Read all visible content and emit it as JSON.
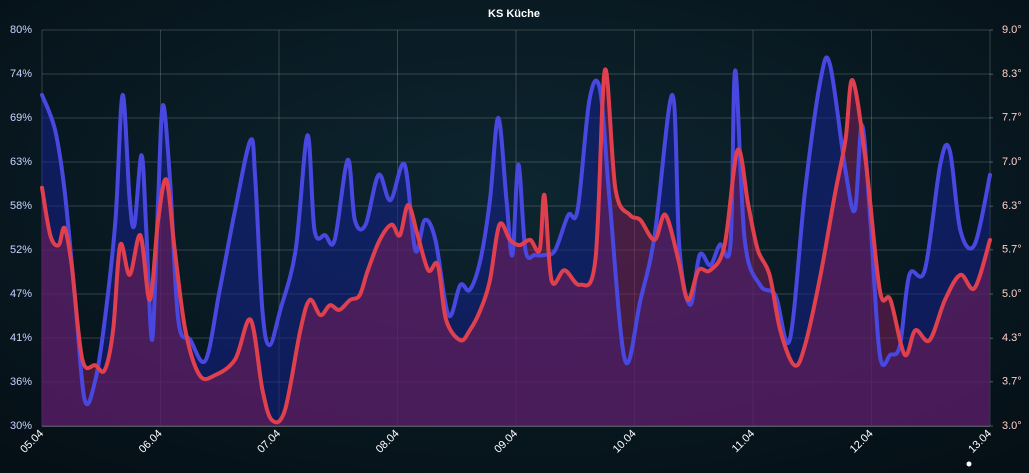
{
  "chart_data": {
    "type": "line",
    "title": "KS Küche",
    "grid": true,
    "xlim": [
      0,
      8
    ],
    "xticks": [
      {
        "value": 0,
        "label": "05.04"
      },
      {
        "value": 1,
        "label": "06.04"
      },
      {
        "value": 2,
        "label": "07.04"
      },
      {
        "value": 3,
        "label": "08.04"
      },
      {
        "value": 4,
        "label": "09.04"
      },
      {
        "value": 5,
        "label": "10.04"
      },
      {
        "value": 6,
        "label": "11.04"
      },
      {
        "value": 7,
        "label": "12.04"
      },
      {
        "value": 8,
        "label": "13.04"
      }
    ],
    "ylim": [
      30,
      80
    ],
    "yticks": [
      {
        "value": 30,
        "label": "30%"
      },
      {
        "value": 35.56,
        "label": "36%"
      },
      {
        "value": 41.11,
        "label": "41%"
      },
      {
        "value": 46.67,
        "label": "47%"
      },
      {
        "value": 52.22,
        "label": "52%"
      },
      {
        "value": 57.78,
        "label": "58%"
      },
      {
        "value": 63.33,
        "label": "63%"
      },
      {
        "value": 68.89,
        "label": "69%"
      },
      {
        "value": 74.44,
        "label": "74%"
      },
      {
        "value": 80,
        "label": "80%"
      }
    ],
    "y2lim": [
      3,
      9
    ],
    "y2ticks": [
      {
        "value": 3,
        "label": "3.0°"
      },
      {
        "value": 3.67,
        "label": "3.7°"
      },
      {
        "value": 4.33,
        "label": "4.3°"
      },
      {
        "value": 5,
        "label": "5.0°"
      },
      {
        "value": 5.67,
        "label": "5.7°"
      },
      {
        "value": 6.33,
        "label": "6.3°"
      },
      {
        "value": 7,
        "label": "7.0°"
      },
      {
        "value": 7.67,
        "label": "7.7°"
      },
      {
        "value": 8.33,
        "label": "8.3°"
      },
      {
        "value": 9,
        "label": "9.0°"
      }
    ],
    "series": [
      {
        "color": "#4848e0",
        "fill": "#14208c",
        "x": [
          0,
          0.11,
          0.19,
          0.28,
          0.36,
          0.45,
          0.53,
          0.62,
          0.68,
          0.74,
          0.78,
          0.84,
          0.88,
          0.93,
          0.98,
          1.02,
          1.08,
          1.15,
          1.25,
          1.38,
          1.5,
          1.63,
          1.76,
          1.8,
          1.86,
          1.92,
          2.01,
          2.14,
          2.24,
          2.3,
          2.39,
          2.47,
          2.58,
          2.64,
          2.73,
          2.84,
          2.94,
          3.06,
          3.15,
          3.23,
          3.32,
          3.43,
          3.53,
          3.61,
          3.7,
          3.78,
          3.85,
          3.92,
          3.97,
          4.02,
          4.08,
          4.16,
          4.24,
          4.33,
          4.44,
          4.52,
          4.62,
          4.71,
          4.79,
          4.92,
          5.05,
          5.17,
          5.32,
          5.38,
          5.47,
          5.55,
          5.64,
          5.72,
          5.81,
          5.85,
          5.93,
          6.06,
          6.19,
          6.31,
          6.44,
          6.57,
          6.65,
          6.78,
          6.86,
          6.92,
          6.99,
          7.07,
          7.16,
          7.24,
          7.32,
          7.45,
          7.58,
          7.66,
          7.75,
          7.87,
          8
        ],
        "values": [
          71.8,
          67.4,
          59.8,
          45.9,
          33.3,
          35.8,
          43.4,
          56,
          71.8,
          58.5,
          55.4,
          64.2,
          54.7,
          40.9,
          58.5,
          70.5,
          61.1,
          43.4,
          40.9,
          38.3,
          47.2,
          57.3,
          66.1,
          61.1,
          44.6,
          40.2,
          44.6,
          52.2,
          66.7,
          54.7,
          54.1,
          53.5,
          63.6,
          56,
          55.4,
          61.7,
          58.5,
          63,
          52.2,
          56,
          53.5,
          44,
          47.8,
          47.2,
          51,
          58.5,
          68.9,
          58.5,
          51.6,
          63,
          52.2,
          51.6,
          51.6,
          52.2,
          56.6,
          57.3,
          71.2,
          72.4,
          58.5,
          38.3,
          45.9,
          54.1,
          71.8,
          52.2,
          45.3,
          51.6,
          50.3,
          52.9,
          52.9,
          74.9,
          53.5,
          47.8,
          46.5,
          40.9,
          59.8,
          73.7,
          75.6,
          62.3,
          57.3,
          68,
          56,
          39,
          39,
          40.2,
          49.1,
          49.7,
          63,
          64.8,
          54.7,
          52.9,
          61.7
        ]
      },
      {
        "color": "#e0404e",
        "fill": "#7a1e5a",
        "axis": "y2",
        "x": [
          0,
          0.07,
          0.14,
          0.19,
          0.25,
          0.34,
          0.45,
          0.53,
          0.6,
          0.66,
          0.74,
          0.83,
          0.91,
          0.98,
          1.05,
          1.12,
          1.21,
          1.33,
          1.46,
          1.63,
          1.76,
          1.86,
          1.94,
          2.05,
          2.18,
          2.26,
          2.35,
          2.43,
          2.51,
          2.6,
          2.68,
          2.75,
          2.85,
          2.95,
          3.02,
          3.09,
          3.17,
          3.26,
          3.34,
          3.41,
          3.53,
          3.61,
          3.7,
          3.78,
          3.86,
          3.95,
          4.03,
          4.12,
          4.2,
          4.24,
          4.3,
          4.41,
          4.54,
          4.67,
          4.75,
          4.84,
          4.96,
          5.05,
          5.17,
          5.26,
          5.37,
          5.45,
          5.54,
          5.64,
          5.76,
          5.87,
          5.96,
          6.04,
          6.14,
          6.23,
          6.35,
          6.44,
          6.57,
          6.69,
          6.78,
          6.84,
          6.95,
          7.07,
          7.16,
          7.28,
          7.37,
          7.49,
          7.62,
          7.75,
          7.87,
          8
        ],
        "values": [
          6.61,
          5.89,
          5.74,
          6,
          5.44,
          4.01,
          3.92,
          3.85,
          4.45,
          5.74,
          5.29,
          5.89,
          4.91,
          6.12,
          6.73,
          5.67,
          4.45,
          3.77,
          3.77,
          4.01,
          4.61,
          3.55,
          3.09,
          3.24,
          4.45,
          4.91,
          4.68,
          4.83,
          4.76,
          4.91,
          4.98,
          5.36,
          5.82,
          6.05,
          5.89,
          6.35,
          5.89,
          5.36,
          5.44,
          4.61,
          4.3,
          4.45,
          4.76,
          5.21,
          6.05,
          5.82,
          5.74,
          5.82,
          5.67,
          6.5,
          5.21,
          5.36,
          5.14,
          5.52,
          8.39,
          6.58,
          6.2,
          6.12,
          5.82,
          6.2,
          5.52,
          4.91,
          5.36,
          5.36,
          5.74,
          7.18,
          6.35,
          5.67,
          5.29,
          4.45,
          3.92,
          4.23,
          5.29,
          6.5,
          7.33,
          8.24,
          7.03,
          5.06,
          4.91,
          4.08,
          4.45,
          4.3,
          4.91,
          5.29,
          5.09,
          5.82
        ]
      }
    ]
  }
}
